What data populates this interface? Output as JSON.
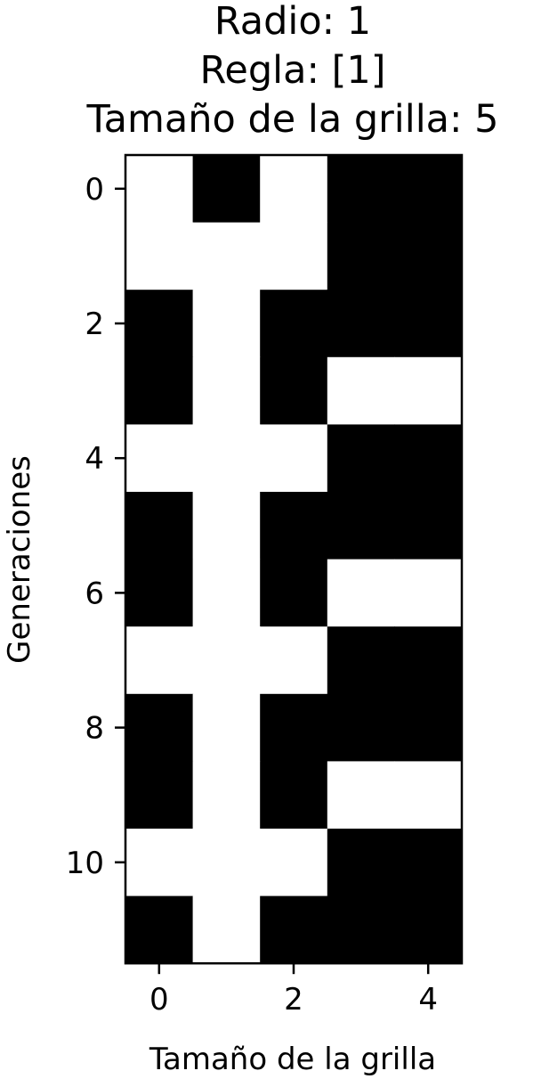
{
  "chart_data": {
    "type": "heatmap",
    "title_lines": [
      "Radio: 1",
      "Regla: [1]",
      "Tamaño de la grilla: 5"
    ],
    "xlabel": "Tamaño de la grilla",
    "ylabel": "Generaciones",
    "x_ticks": [
      0,
      2,
      4
    ],
    "y_ticks": [
      0,
      2,
      4,
      6,
      8,
      10
    ],
    "x_tick_labels": [
      "0",
      "2",
      "4"
    ],
    "y_tick_labels": [
      "0",
      "2",
      "4",
      "6",
      "8",
      "10"
    ],
    "n_cols": 5,
    "n_rows": 12,
    "colormap": {
      "0": "#ffffff",
      "1": "#000000"
    },
    "grid": false,
    "values": [
      [
        0,
        1,
        0,
        1,
        1
      ],
      [
        0,
        0,
        0,
        1,
        1
      ],
      [
        1,
        0,
        1,
        1,
        1
      ],
      [
        1,
        0,
        1,
        0,
        0
      ],
      [
        0,
        0,
        0,
        1,
        1
      ],
      [
        1,
        0,
        1,
        1,
        1
      ],
      [
        1,
        0,
        1,
        0,
        0
      ],
      [
        0,
        0,
        0,
        1,
        1
      ],
      [
        1,
        0,
        1,
        1,
        1
      ],
      [
        1,
        0,
        1,
        0,
        0
      ],
      [
        0,
        0,
        0,
        1,
        1
      ],
      [
        1,
        0,
        1,
        1,
        1
      ]
    ]
  }
}
